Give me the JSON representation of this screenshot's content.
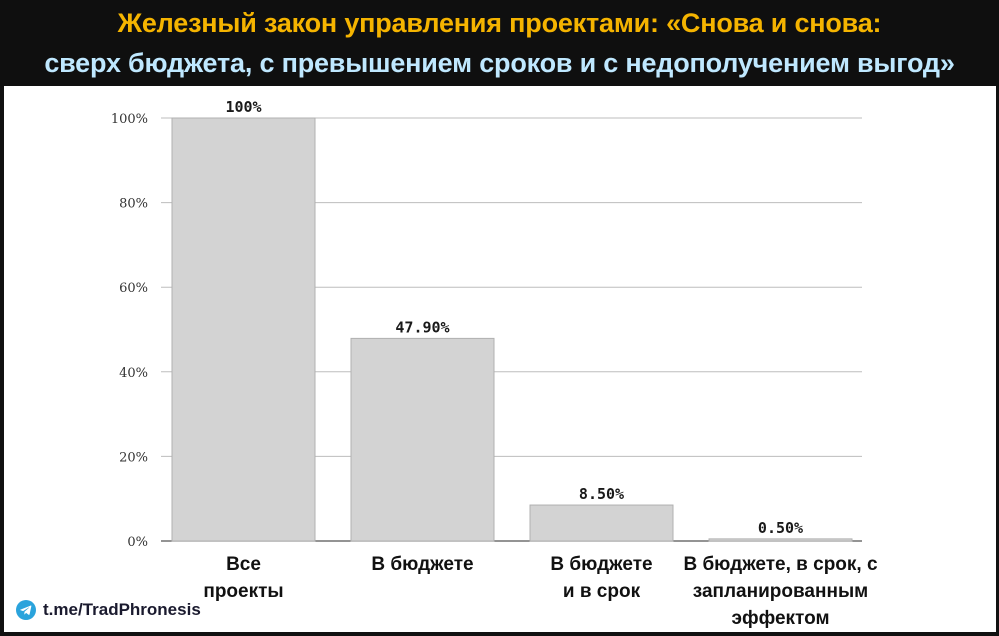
{
  "header": {
    "title_line1": "Железный закон управления проектами: «Снова и снова:",
    "title_line2": "сверх бюджета, с превышением сроков и с недополучением выгод»"
  },
  "footer": {
    "link_text": "t.me/TradPhronesis",
    "icon": "telegram-icon"
  },
  "colors": {
    "bar_fill": "#d3d3d3",
    "title_line1": "#f5b400",
    "title_line2": "#bfe8ff",
    "title_background": "#0f0f0f",
    "telegram": "#2aa3dc"
  },
  "chart_data": {
    "type": "bar",
    "title": "",
    "xlabel": "",
    "ylabel": "",
    "ylim": [
      0,
      100
    ],
    "y_ticks": [
      0,
      20,
      40,
      60,
      80,
      100
    ],
    "y_tick_labels": [
      "0%",
      "20%",
      "40%",
      "60%",
      "80%",
      "100%"
    ],
    "grid": true,
    "categories": [
      [
        "Все",
        "проекты"
      ],
      [
        "В бюджете"
      ],
      [
        "В бюджете",
        "и в срок"
      ],
      [
        "В бюджете, в срок, с",
        "запланированным",
        "эффектом"
      ]
    ],
    "values": [
      100,
      47.9,
      8.5,
      0.5
    ],
    "data_labels": [
      "100%",
      "47.90%",
      "8.50%",
      "0.50%"
    ]
  }
}
